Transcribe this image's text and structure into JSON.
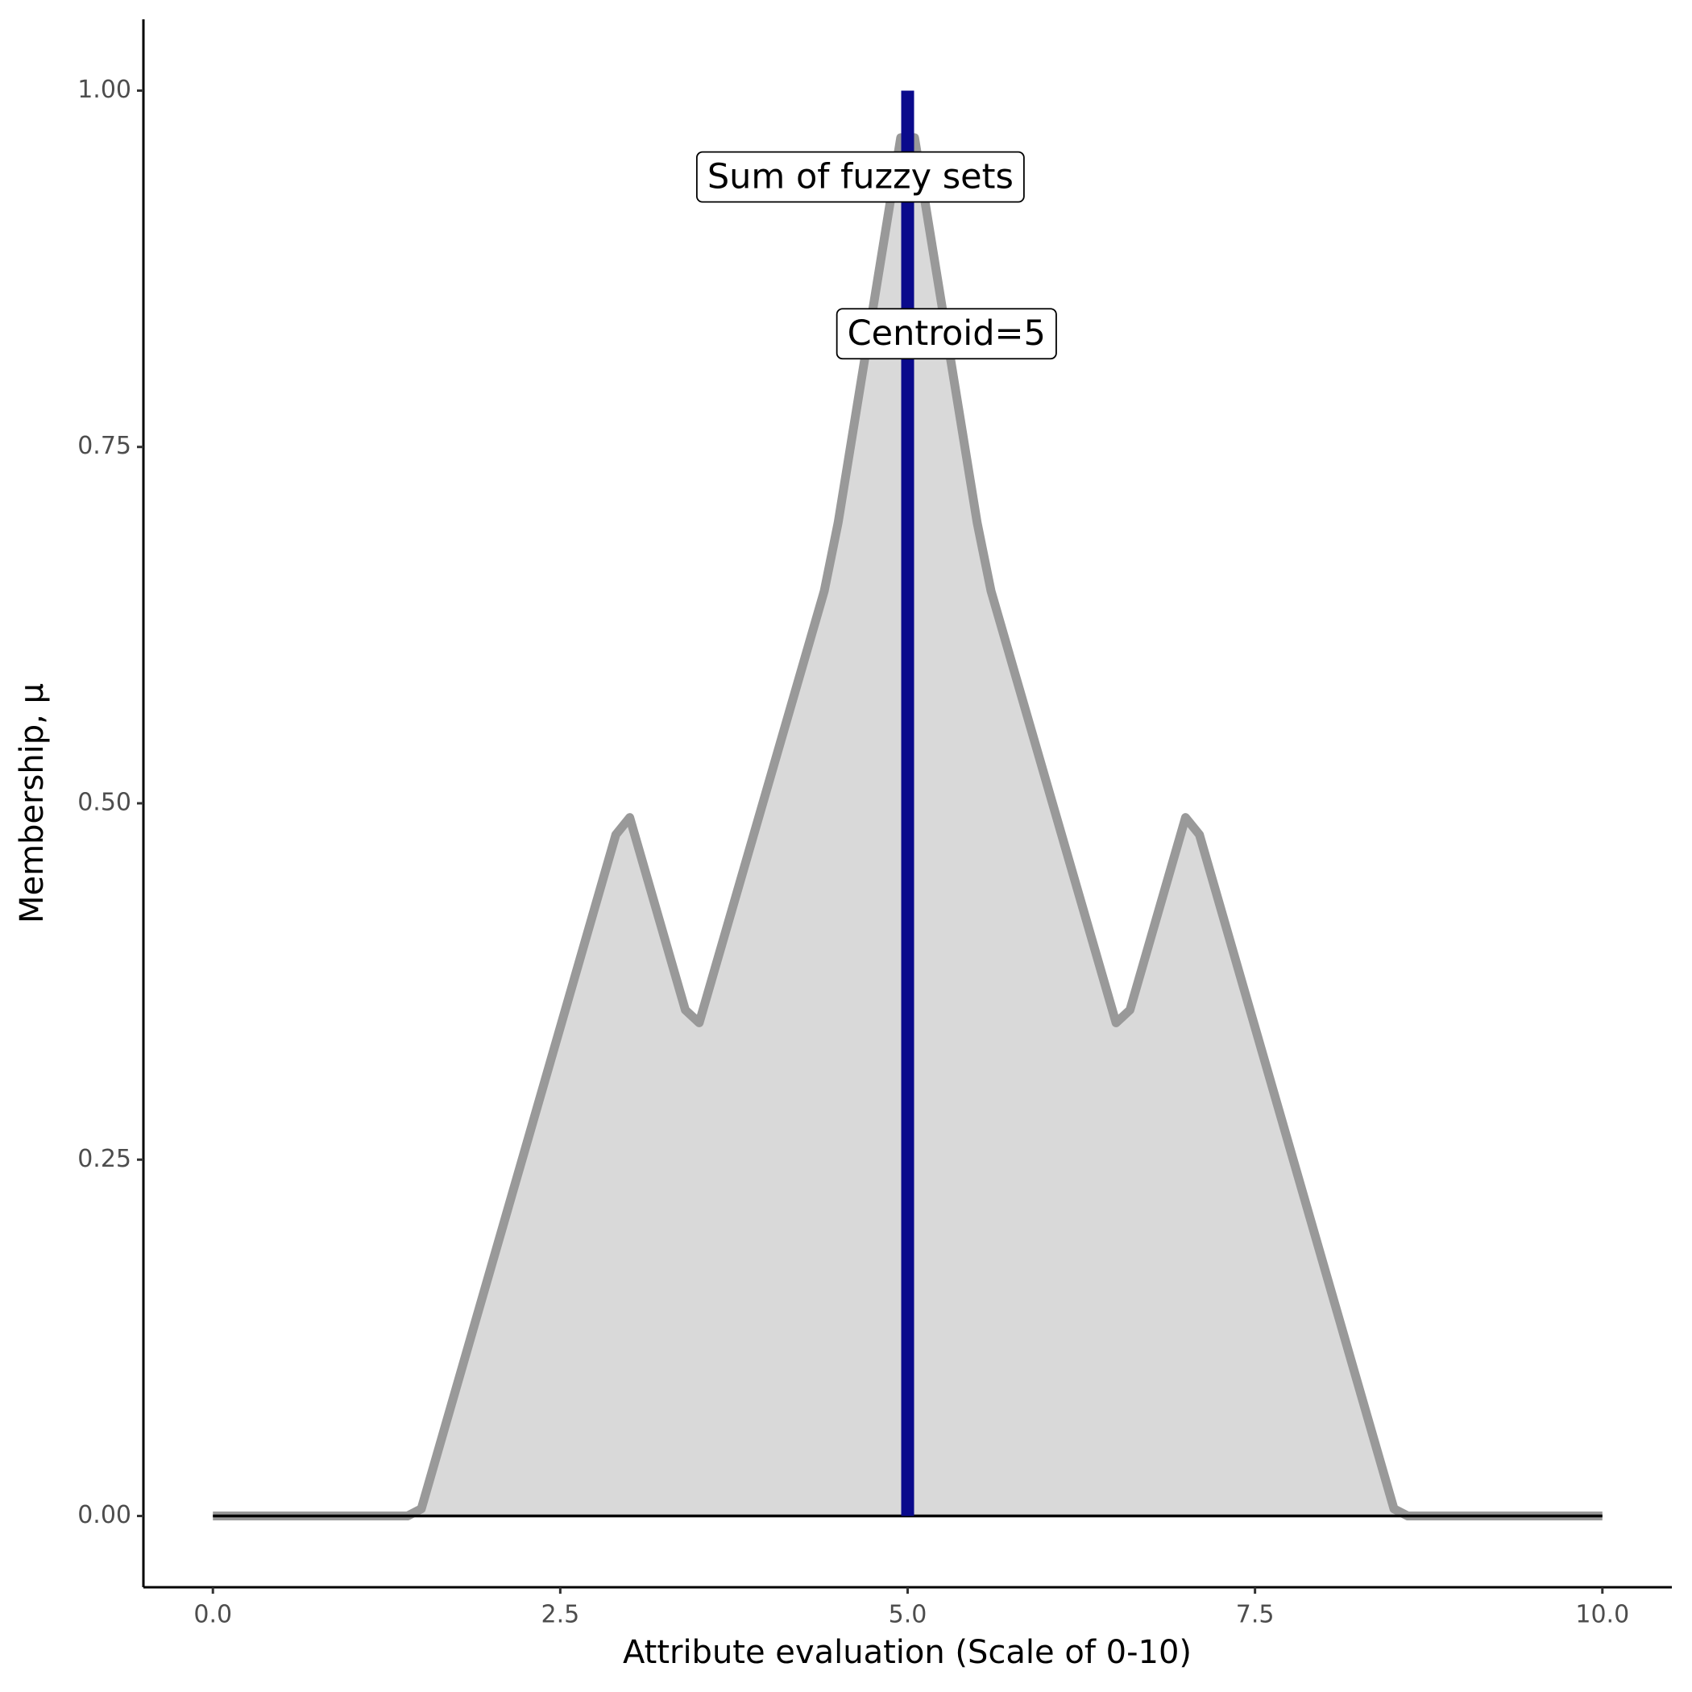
{
  "chart_data": {
    "type": "area",
    "x_label": "Attribute evaluation (Scale of 0-10)",
    "y_label": "Membership, μ",
    "xlim": [
      -0.5,
      10.5
    ],
    "ylim": [
      -0.05,
      1.05
    ],
    "xticks": [
      {
        "value": 0,
        "label": "0.0"
      },
      2.5,
      {
        "value": 5,
        "label": "5.0"
      },
      7.5,
      {
        "value": 10,
        "label": "10.0"
      }
    ],
    "yticks": [
      {
        "value": 0,
        "label": "0.00"
      },
      {
        "value": 0.25,
        "label": "0.25"
      },
      {
        "value": 0.5,
        "label": "0.50"
      },
      {
        "value": 0.75,
        "label": "0.75"
      },
      {
        "value": 1,
        "label": "1.00"
      }
    ],
    "series": [
      {
        "name": "Sum of fuzzy sets",
        "color": "#999999",
        "fill": "#d9d9d9",
        "x": [
          0,
          1.4,
          1.5,
          2.9,
          3.0,
          3.4,
          3.5,
          4.4,
          4.5,
          4.95,
          5.05,
          5.5,
          5.6,
          6.5,
          6.6,
          7.0,
          7.1,
          8.5,
          8.6,
          10
        ],
        "values": [
          0,
          0,
          0.005,
          0.478,
          0.49,
          0.355,
          0.346,
          0.649,
          0.697,
          0.967,
          0.967,
          0.697,
          0.649,
          0.346,
          0.355,
          0.49,
          0.478,
          0.005,
          0,
          0
        ]
      }
    ],
    "baseline": {
      "y": 0,
      "color": "#000000"
    },
    "centroid": {
      "x": 5,
      "ymin": 0,
      "ymax": 1,
      "color": "#0a0a8c"
    },
    "annotations": [
      {
        "text": "Sum of fuzzy sets",
        "x": 4.66,
        "y": 0.938
      },
      {
        "text": "Centroid=5",
        "x": 5.28,
        "y": 0.828
      }
    ]
  }
}
